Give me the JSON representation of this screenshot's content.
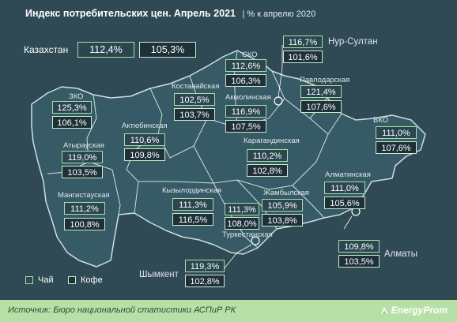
{
  "title": "Индекс потребительских цен. Апрель 2021",
  "subtitle": "| % к апрелю 2020",
  "country": {
    "name": "Казахстан",
    "tea": "112,4%",
    "coffee": "105,3%"
  },
  "regions": [
    {
      "id": "nursultan",
      "name": "Нур-Султан",
      "tea": "116,7%",
      "coffee": "101,6%"
    },
    {
      "id": "sko",
      "name": "СКО",
      "tea": "112,6%",
      "coffee": "106,3%"
    },
    {
      "id": "pavlodar",
      "name": "Павлодарская",
      "tea": "121,4%",
      "coffee": "107,6%"
    },
    {
      "id": "kostanay",
      "name": "Костанайская",
      "tea": "102,5%",
      "coffee": "103,7%"
    },
    {
      "id": "akmola",
      "name": "Акмолинская",
      "tea": "116,9%",
      "coffee": "107,5%"
    },
    {
      "id": "zko",
      "name": "ЗКО",
      "tea": "125,3%",
      "coffee": "106,1%"
    },
    {
      "id": "aktobe",
      "name": "Актюбинская",
      "tea": "110,6%",
      "coffee": "109,8%"
    },
    {
      "id": "vko",
      "name": "ВКО",
      "tea": "111,0%",
      "coffee": "107,6%"
    },
    {
      "id": "atyrau",
      "name": "Атырауская",
      "tea": "119,0%",
      "coffee": "103,5%"
    },
    {
      "id": "karaganda",
      "name": "Карагандинская",
      "tea": "110,2%",
      "coffee": "102,8%"
    },
    {
      "id": "mangystau",
      "name": "Мангистауская",
      "tea": "111,2%",
      "coffee": "100,8%"
    },
    {
      "id": "almaty_reg",
      "name": "Алматинская",
      "tea": "111,0%",
      "coffee": "105,6%"
    },
    {
      "id": "kyzylorda",
      "name": "Кызылординская",
      "tea": "111,3%",
      "coffee": "116,5%"
    },
    {
      "id": "zhambyl",
      "name": "Жамбылская",
      "tea": "105,9%",
      "coffee": "103,8%"
    },
    {
      "id": "turkestan",
      "name": "Туркестанская",
      "tea": "111,3%",
      "coffee": "108,0%"
    },
    {
      "id": "almaty_city",
      "name": "Алматы",
      "tea": "109,8%",
      "coffee": "103,5%"
    },
    {
      "id": "shymkent",
      "name": "Шымкент",
      "tea": "119,3%",
      "coffee": "102,8%"
    }
  ],
  "legend": {
    "tea": "Чай",
    "coffee": "Кофе"
  },
  "colors": {
    "background": "#2f4a55",
    "map_fill": "#365a66",
    "tea_border": "#a8e0a0",
    "footer": "#b7e0a6"
  },
  "source": "Источник: Бюро национальной статистики АСПиР РК",
  "brand": "EnergyProm"
}
